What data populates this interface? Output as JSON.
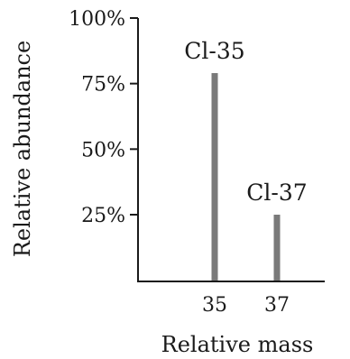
{
  "chart_data": {
    "type": "bar",
    "categories": [
      "35",
      "37"
    ],
    "values": [
      79,
      25
    ],
    "bar_labels": [
      "Cl-35",
      "Cl-37"
    ],
    "bar_color": "#7a7a7a",
    "xlabel": "Relative mass",
    "ylabel": "Relative abundance",
    "ylim": [
      0,
      100
    ],
    "yticks": [
      {
        "value": 25,
        "label": "25%"
      },
      {
        "value": 50,
        "label": "50%"
      },
      {
        "value": 75,
        "label": "75%"
      },
      {
        "value": 100,
        "label": "100%"
      }
    ],
    "grid": false
  }
}
